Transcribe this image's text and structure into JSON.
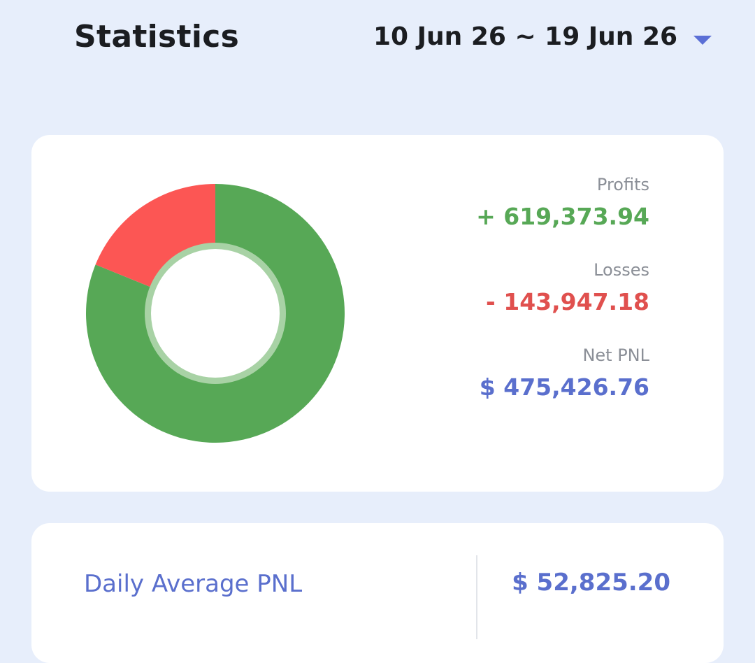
{
  "header": {
    "title": "Statistics",
    "date_range": "10 Jun 26 ~ 19 Jun 26",
    "dropdown_icon": "caret-down-icon"
  },
  "summary": {
    "profits_label": "Profits",
    "profits_value": "+ 619,373.94",
    "losses_label": "Losses",
    "losses_value": "- 143,947.18",
    "net_label": "Net PNL",
    "net_value": "$ 475,426.76"
  },
  "daily": {
    "label": "Daily Average PNL",
    "value": "$ 52,825.20"
  },
  "colors": {
    "profit": "#57a856",
    "loss": "#fc5654",
    "accent": "#5a6fcd",
    "background": "#e7eefb"
  },
  "chart_data": {
    "type": "pie",
    "series": [
      {
        "values": [
          619373.94,
          143947.18
        ]
      }
    ],
    "categories": [
      "Profits",
      "Losses"
    ],
    "colors": [
      "#57a856",
      "#fc5654"
    ],
    "donut": true
  }
}
